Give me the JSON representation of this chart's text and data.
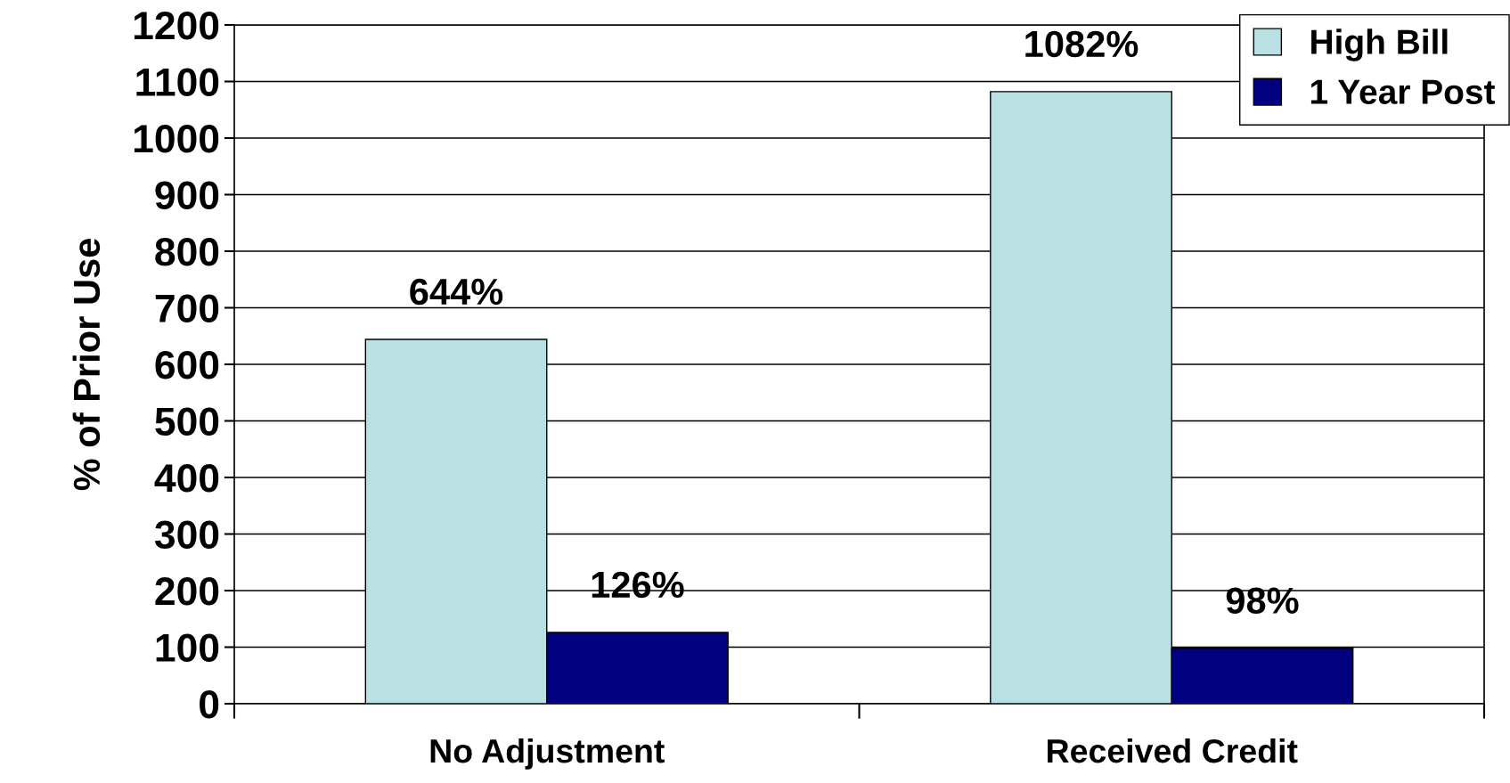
{
  "chart_data": {
    "type": "bar",
    "ylabel": "% of Prior Use",
    "categories": [
      "No Adjustment",
      "Received Credit"
    ],
    "series": [
      {
        "name": "High Bill",
        "color": "#b9e0e3",
        "values": [
          644,
          1082
        ],
        "value_labels": [
          "644%",
          "1082%"
        ]
      },
      {
        "name": "1 Year Post",
        "color": "#000080",
        "values": [
          126,
          98
        ],
        "value_labels": [
          "126%",
          "98%"
        ]
      }
    ],
    "ylim": [
      0,
      1200
    ],
    "yticks": [
      0,
      100,
      200,
      300,
      400,
      500,
      600,
      700,
      800,
      900,
      1000,
      1100,
      1200
    ],
    "grid": "y",
    "legend": "top right"
  }
}
